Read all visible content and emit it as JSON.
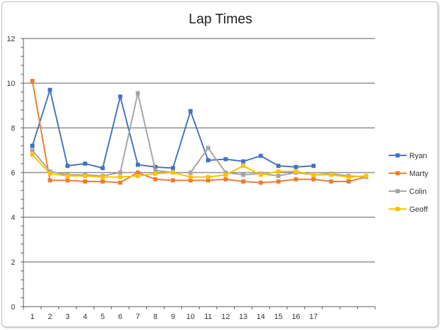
{
  "chart_data": {
    "type": "line",
    "title": "Lap Times",
    "xlabel": "",
    "ylabel": "",
    "ylim": [
      0,
      12
    ],
    "y_ticks": [
      0,
      2,
      4,
      6,
      8,
      10,
      12
    ],
    "x_tick_labels": [
      "1",
      "2",
      "3",
      "4",
      "5",
      "6",
      "7",
      "8",
      "9",
      "10",
      "11",
      "12",
      "13",
      "14",
      "15",
      "16",
      "17"
    ],
    "x_slots": 20,
    "grid": "horizontal-major",
    "legend_position": "right",
    "series": [
      {
        "name": "Ryan",
        "color": "#4472C4",
        "marker": "square",
        "values": [
          7.2,
          9.7,
          6.3,
          6.4,
          6.2,
          9.4,
          6.35,
          6.25,
          6.2,
          8.75,
          6.55,
          6.6,
          6.5,
          6.75,
          6.3,
          6.25,
          6.3
        ]
      },
      {
        "name": "Marty",
        "color": "#ED7D31",
        "marker": "square",
        "values": [
          10.1,
          5.65,
          5.65,
          5.6,
          5.6,
          5.55,
          6.0,
          5.7,
          5.65,
          5.65,
          5.65,
          5.7,
          5.6,
          5.55,
          5.6,
          5.7,
          5.7,
          5.6,
          5.6,
          5.8
        ]
      },
      {
        "name": "Colin",
        "color": "#A5A5A5",
        "marker": "square",
        "values": [
          7.0,
          6.05,
          5.9,
          5.9,
          5.85,
          6.0,
          9.55,
          6.1,
          6.0,
          6.0,
          7.1,
          6.0,
          5.9,
          5.95,
          5.85,
          6.0,
          5.9,
          5.95,
          5.85,
          5.8
        ]
      },
      {
        "name": "Geoff",
        "color": "#FFC000",
        "marker": "square",
        "values": [
          6.8,
          5.95,
          5.85,
          5.85,
          5.8,
          5.8,
          5.85,
          5.95,
          6.0,
          5.8,
          5.8,
          5.9,
          6.3,
          5.9,
          6.05,
          6.05,
          5.9,
          5.9,
          5.8,
          5.85
        ]
      }
    ]
  }
}
